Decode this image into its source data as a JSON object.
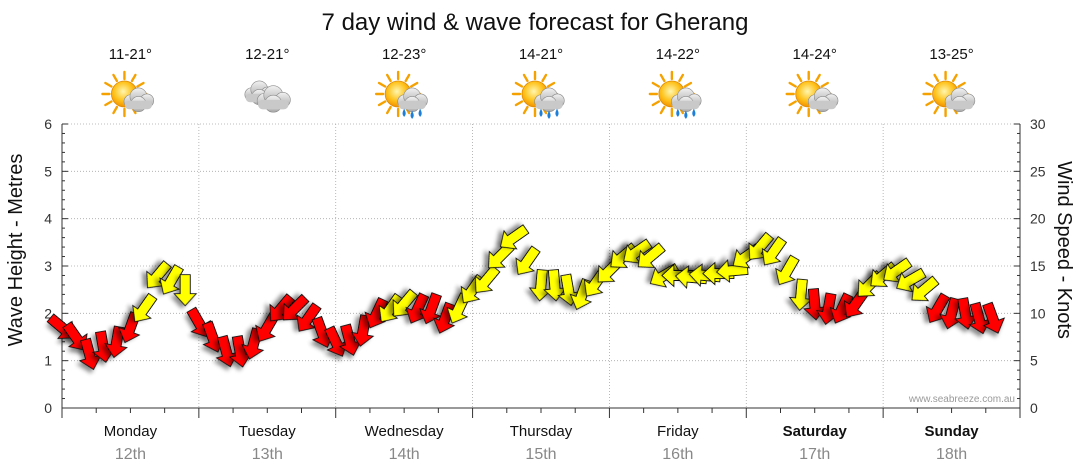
{
  "chart_data": {
    "type": "line",
    "title": "7 day wind & wave forecast for Gherang",
    "ylabel_left": "Wave Height - Metres",
    "ylabel_right": "Wind Speed - Knots",
    "ylim_left": [
      0,
      6
    ],
    "ylim_right": [
      0,
      30
    ],
    "yticks_left": [
      "0",
      "1",
      "2",
      "3",
      "4",
      "5",
      "6"
    ],
    "yticks_right": [
      "0",
      "5",
      "10",
      "15",
      "20",
      "25",
      "30"
    ],
    "grid": true,
    "credit": "www.seabreeze.com.au",
    "days": [
      {
        "name": "Monday",
        "date": "12th",
        "temp": "11-21°",
        "icon": "sun-cloud-icon",
        "bold": false
      },
      {
        "name": "Tuesday",
        "date": "13th",
        "temp": "12-21°",
        "icon": "cloud-icon",
        "bold": false
      },
      {
        "name": "Wednesday",
        "date": "14th",
        "temp": "12-23°",
        "icon": "sun-cloud-rain-icon",
        "bold": false
      },
      {
        "name": "Thursday",
        "date": "15th",
        "temp": "14-21°",
        "icon": "sun-cloud-rain-icon",
        "bold": false
      },
      {
        "name": "Friday",
        "date": "16th",
        "temp": "14-22°",
        "icon": "sun-cloud-rain-icon",
        "bold": false
      },
      {
        "name": "Saturday",
        "date": "17th",
        "temp": "14-24°",
        "icon": "sun-cloud-icon",
        "bold": true
      },
      {
        "name": "Sunday",
        "date": "18th",
        "temp": "13-25°",
        "icon": "sun-cloud-icon",
        "bold": true
      }
    ],
    "series": [
      {
        "kind": "wind",
        "x": [
          0,
          0.1,
          0.2,
          0.3,
          0.4,
          0.5,
          0.6,
          0.7,
          0.8,
          0.9,
          1,
          1.1,
          1.2,
          1.3,
          1.4,
          1.5,
          1.6,
          1.7,
          1.8,
          1.9,
          2,
          2.1,
          2.2,
          2.3,
          2.4,
          2.5,
          2.6,
          2.7,
          2.8,
          2.9,
          3,
          3.1,
          3.2,
          3.3,
          3.4,
          3.5,
          3.6,
          3.7,
          3.8,
          3.9,
          4,
          4.1,
          4.2,
          4.3,
          4.4,
          4.5,
          4.6,
          4.7,
          4.8,
          4.9,
          5,
          5.1,
          5.2,
          5.3,
          5.4,
          5.5,
          5.6,
          5.7,
          5.8,
          5.9,
          6,
          6.1,
          6.2,
          6.3,
          6.4,
          6.5,
          6.6,
          6.7,
          6.8
        ],
        "values": [
          8.5,
          7.5,
          5.7,
          6.5,
          7,
          8.5,
          10.5,
          14,
          13.5,
          12.5,
          9,
          7.5,
          6,
          6,
          6.8,
          8.5,
          10.5,
          10.5,
          9.5,
          8,
          7,
          7.2,
          8.2,
          10,
          10.5,
          11,
          10.5,
          10.5,
          9.5,
          10.5,
          12.5,
          13.5,
          16,
          18,
          15.5,
          13,
          13,
          12.5,
          12,
          13.2,
          14.5,
          16,
          16.5,
          16,
          14,
          14,
          13.8,
          14,
          14.2,
          14.5,
          16,
          17,
          16.5,
          14.5,
          12,
          11,
          10.5,
          10.5,
          11,
          13,
          14,
          14.5,
          13.5,
          12.5,
          10.5,
          10,
          10,
          9.5,
          9.5
        ],
        "colors": [
          "#ff0000",
          "#ff0000",
          "#ff0000",
          "#ff0000",
          "#ff0000",
          "#ff0000",
          "#ffff00",
          "#ffff00",
          "#ffff00",
          "#ffff00",
          "#ff0000",
          "#ff0000",
          "#ff0000",
          "#ff0000",
          "#ff0000",
          "#ff0000",
          "#ff0000",
          "#ff0000",
          "#ff0000",
          "#ff0000",
          "#ff0000",
          "#ff0000",
          "#ff0000",
          "#ff0000",
          "#ffff00",
          "#ffff00",
          "#ff0000",
          "#ff0000",
          "#ff0000",
          "#ffff00",
          "#ffff00",
          "#ffff00",
          "#ffff00",
          "#ffff00",
          "#ffff00",
          "#ffff00",
          "#ffff00",
          "#ffff00",
          "#ffff00",
          "#ffff00",
          "#ffff00",
          "#ffff00",
          "#ffff00",
          "#ffff00",
          "#ffff00",
          "#ffff00",
          "#ffff00",
          "#ffff00",
          "#ffff00",
          "#ffff00",
          "#ffff00",
          "#ffff00",
          "#ffff00",
          "#ffff00",
          "#ffff00",
          "#ff0000",
          "#ff0000",
          "#ff0000",
          "#ff0000",
          "#ffff00",
          "#ffff00",
          "#ffff00",
          "#ffff00",
          "#ffff00",
          "#ff0000",
          "#ff0000",
          "#ff0000",
          "#ff0000",
          "#ff0000"
        ],
        "directions": [
          130,
          145,
          165,
          170,
          190,
          200,
          215,
          220,
          210,
          180,
          150,
          160,
          165,
          170,
          195,
          210,
          220,
          225,
          215,
          160,
          155,
          165,
          190,
          205,
          215,
          220,
          205,
          200,
          200,
          205,
          215,
          220,
          225,
          235,
          215,
          185,
          175,
          170,
          200,
          215,
          225,
          230,
          235,
          230,
          240,
          270,
          275,
          275,
          270,
          265,
          235,
          220,
          215,
          210,
          185,
          175,
          190,
          205,
          215,
          225,
          230,
          235,
          240,
          230,
          210,
          195,
          170,
          165,
          160
        ]
      }
    ]
  }
}
